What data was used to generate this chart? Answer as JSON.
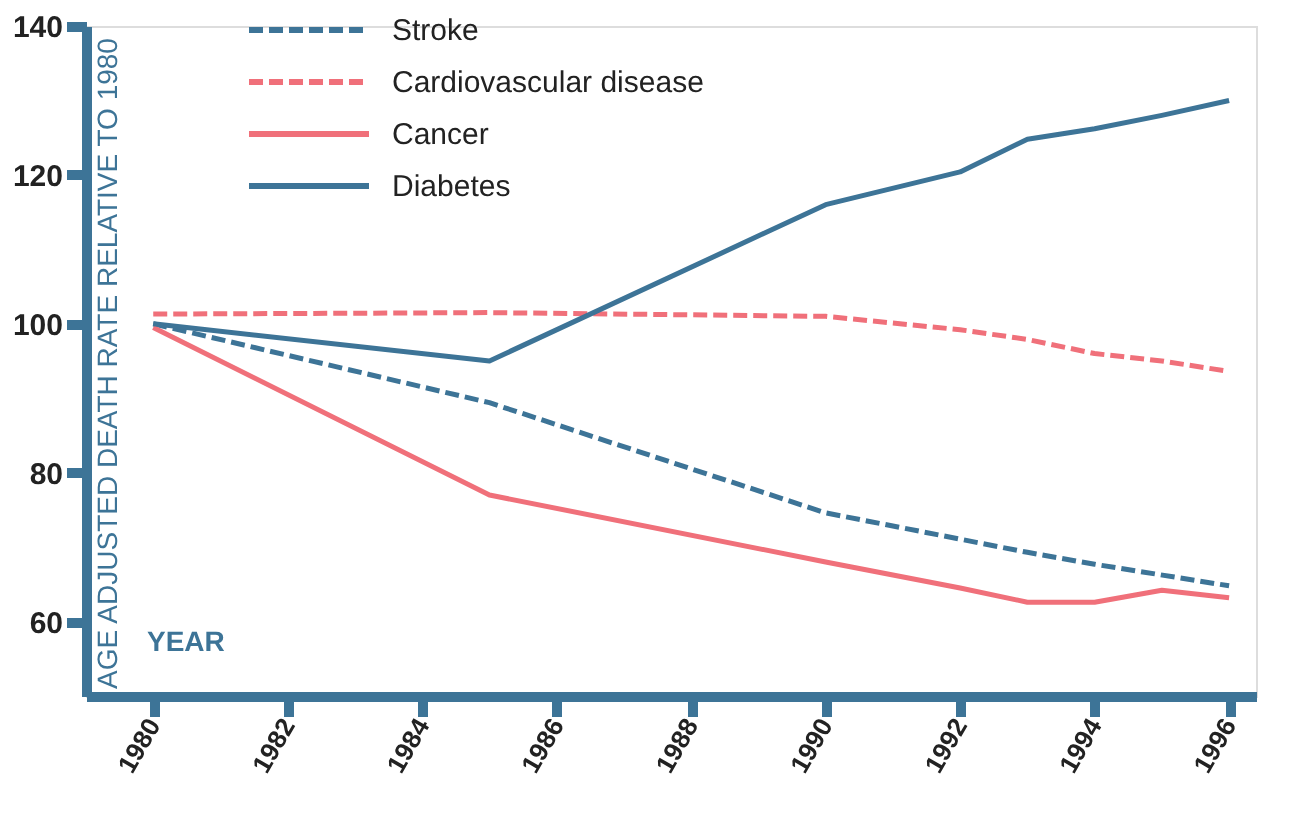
{
  "chart_data": {
    "type": "line",
    "xlabel": "YEAR",
    "ylabel": "AGE ADJUSTED DEATH RATE RELATIVE TO 1980",
    "xlim": [
      1979,
      1996.4
    ],
    "xticks": [
      1980,
      1982,
      1984,
      1986,
      1988,
      1990,
      1992,
      1994,
      1996
    ],
    "ylim": [
      50,
      140
    ],
    "yticks": [
      60,
      80,
      100,
      120,
      140
    ],
    "grid": false,
    "legend": "top left",
    "marker": "none",
    "series": [
      {
        "name": "Stroke",
        "color": "#3d7497",
        "line_style": "dashed",
        "x": [
          1980,
          1985,
          1990,
          1993,
          1994,
          1996
        ],
        "values": [
          100,
          89.4,
          74.6,
          69.3,
          67.7,
          64.8
        ]
      },
      {
        "name": "Cardiovascular disease",
        "color": "#f0707a",
        "line_style": "dashed",
        "x": [
          1980,
          1985,
          1990,
          1992,
          1993,
          1994,
          1995,
          1996
        ],
        "values": [
          101.3,
          101.5,
          101,
          99.2,
          97.9,
          96,
          95,
          93.6
        ]
      },
      {
        "name": "Cancer",
        "color": "#f0707a",
        "line_style": "solid",
        "x": [
          1980,
          1985,
          1990,
          1992,
          1993,
          1994,
          1995,
          1996
        ],
        "values": [
          99.5,
          77,
          68,
          64.5,
          62.6,
          62.6,
          64.2,
          63.2
        ]
      },
      {
        "name": "Diabetes",
        "color": "#3d7497",
        "line_style": "solid",
        "x": [
          1980,
          1985,
          1990,
          1992,
          1993,
          1994,
          1995,
          1996
        ],
        "values": [
          100,
          95,
          116,
          120.4,
          124.8,
          126.2,
          128,
          130
        ]
      }
    ]
  }
}
